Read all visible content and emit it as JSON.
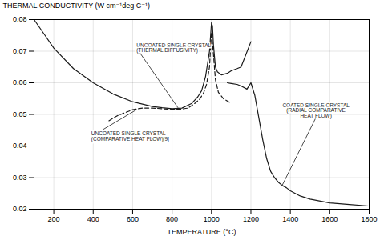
{
  "chart_data": {
    "type": "line",
    "xlabel": "TEMPERATURE (°C)",
    "ylabel": "THERMAL CONDUCTIVITY (W cm⁻¹deg C⁻¹)",
    "xlim": [
      100,
      1800
    ],
    "ylim": [
      0.02,
      0.08
    ],
    "xticks": [
      200,
      400,
      600,
      800,
      1000,
      1200,
      1400,
      1600,
      1800
    ],
    "yticks": [
      0.02,
      0.03,
      0.04,
      0.05,
      0.06,
      0.07,
      0.08
    ],
    "grid": true,
    "series": [
      {
        "x": [
          100,
          150,
          200,
          300,
          400,
          500,
          600,
          700,
          750,
          800,
          850,
          900,
          930,
          950,
          970,
          990,
          1000,
          1005,
          1010,
          1020,
          1030,
          1050,
          1080,
          1100,
          1130,
          1150,
          1200
        ],
        "values": [
          0.08,
          0.0755,
          0.071,
          0.0645,
          0.06,
          0.0565,
          0.054,
          0.0525,
          0.0521,
          0.0518,
          0.052,
          0.0535,
          0.0555,
          0.0575,
          0.062,
          0.07,
          0.079,
          0.078,
          0.072,
          0.065,
          0.0635,
          0.0625,
          0.063,
          0.0638,
          0.0645,
          0.065,
          0.073
        ],
        "color": "#1a1a1a",
        "line_style": "solid"
      },
      {
        "x": [
          480,
          520,
          560,
          600,
          650,
          700,
          750,
          800,
          840,
          880,
          910,
          940,
          960,
          975,
          990,
          1000,
          1010,
          1020,
          1035,
          1060,
          1100
        ],
        "values": [
          0.048,
          0.0495,
          0.0505,
          0.0515,
          0.052,
          0.052,
          0.0518,
          0.0516,
          0.0516,
          0.052,
          0.0532,
          0.0548,
          0.0568,
          0.0595,
          0.065,
          0.076,
          0.069,
          0.061,
          0.057,
          0.055,
          0.0535
        ],
        "color": "#1a1a1a",
        "line_style": "dashed"
      },
      {
        "x": [
          1080,
          1100,
          1130,
          1150,
          1180,
          1200,
          1220,
          1240,
          1260,
          1280,
          1300,
          1320,
          1340,
          1360,
          1380,
          1400,
          1450,
          1500,
          1600,
          1700,
          1800
        ],
        "values": [
          0.06,
          0.0598,
          0.0595,
          0.059,
          0.058,
          0.06,
          0.056,
          0.049,
          0.042,
          0.036,
          0.032,
          0.03,
          0.0285,
          0.0275,
          0.0268,
          0.0258,
          0.0242,
          0.0232,
          0.022,
          0.0215,
          0.021
        ],
        "color": "#1a1a1a",
        "line_style": "solid"
      }
    ],
    "annotations": [
      {
        "text": "UNCOATED SINGLE CRYSTAL\n(THERMAL DIFFUSIVITY)",
        "x": 830,
        "y": 0.0521,
        "text_x": 620,
        "text_y": 0.071
      },
      {
        "text": "UNCOATED SINGLE CRYSTAL\n(COMPARATIVE HEAT FLOW)[9]",
        "x": 620,
        "y": 0.0515,
        "text_x": 390,
        "text_y": 0.043
      },
      {
        "text": "COATED SINGLE CRYSTAL\n(RADIAL COMPARATIVE\nHEAT FLOW)",
        "x": 1360,
        "y": 0.0277,
        "text_x": 1530,
        "text_y": 0.049
      }
    ]
  }
}
